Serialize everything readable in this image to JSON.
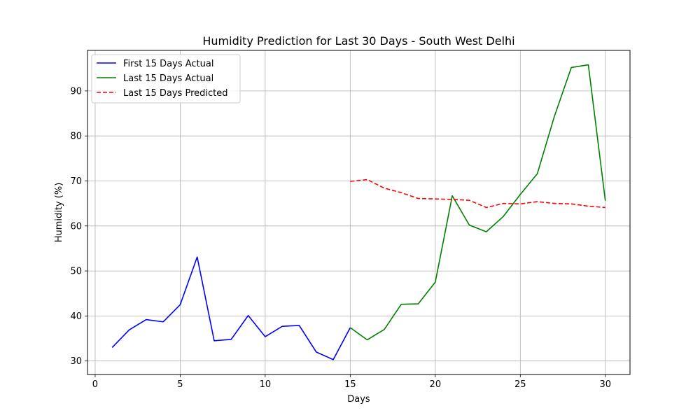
{
  "chart_data": {
    "type": "line",
    "title": "Humidity Prediction for Last 30 Days - South West Delhi",
    "xlabel": "Days",
    "ylabel": "Humidity (%)",
    "xlim": [
      -0.45,
      31.45
    ],
    "ylim": [
      27.0,
      99.0
    ],
    "xticks": [
      0,
      5,
      10,
      15,
      20,
      25,
      30
    ],
    "yticks": [
      30,
      40,
      50,
      60,
      70,
      80,
      90
    ],
    "grid": true,
    "legend_position": "top-left",
    "series": [
      {
        "name": "First 15 Days Actual",
        "color": "#0000ff",
        "style": "solid",
        "x": [
          1,
          2,
          3,
          4,
          5,
          6,
          7,
          8,
          9,
          10,
          11,
          12,
          13,
          14,
          15
        ],
        "values": [
          33.0,
          36.9,
          39.2,
          38.7,
          42.5,
          53.1,
          34.5,
          34.8,
          40.1,
          35.4,
          37.7,
          37.9,
          32.0,
          30.3,
          37.4
        ]
      },
      {
        "name": "Last 15 Days Actual",
        "color": "#008000",
        "style": "solid",
        "x": [
          15,
          16,
          17,
          18,
          19,
          20,
          21,
          22,
          23,
          24,
          25,
          26,
          27,
          28,
          29,
          30
        ],
        "values": [
          37.4,
          34.7,
          37.0,
          42.6,
          42.7,
          47.5,
          66.7,
          60.2,
          58.7,
          62.1,
          67.0,
          71.6,
          84.3,
          95.2,
          95.8,
          65.6
        ]
      },
      {
        "name": "Last 15 Days Predicted",
        "color": "#ff0000",
        "style": "dashed",
        "x": [
          15,
          16,
          17,
          18,
          19,
          20,
          21,
          22,
          23,
          24,
          25,
          26,
          27,
          28,
          29,
          30
        ],
        "values": [
          69.9,
          70.3,
          68.4,
          67.4,
          66.1,
          66.0,
          65.9,
          65.7,
          64.1,
          65.0,
          64.9,
          65.4,
          65.0,
          64.9,
          64.4,
          64.1
        ]
      }
    ]
  }
}
